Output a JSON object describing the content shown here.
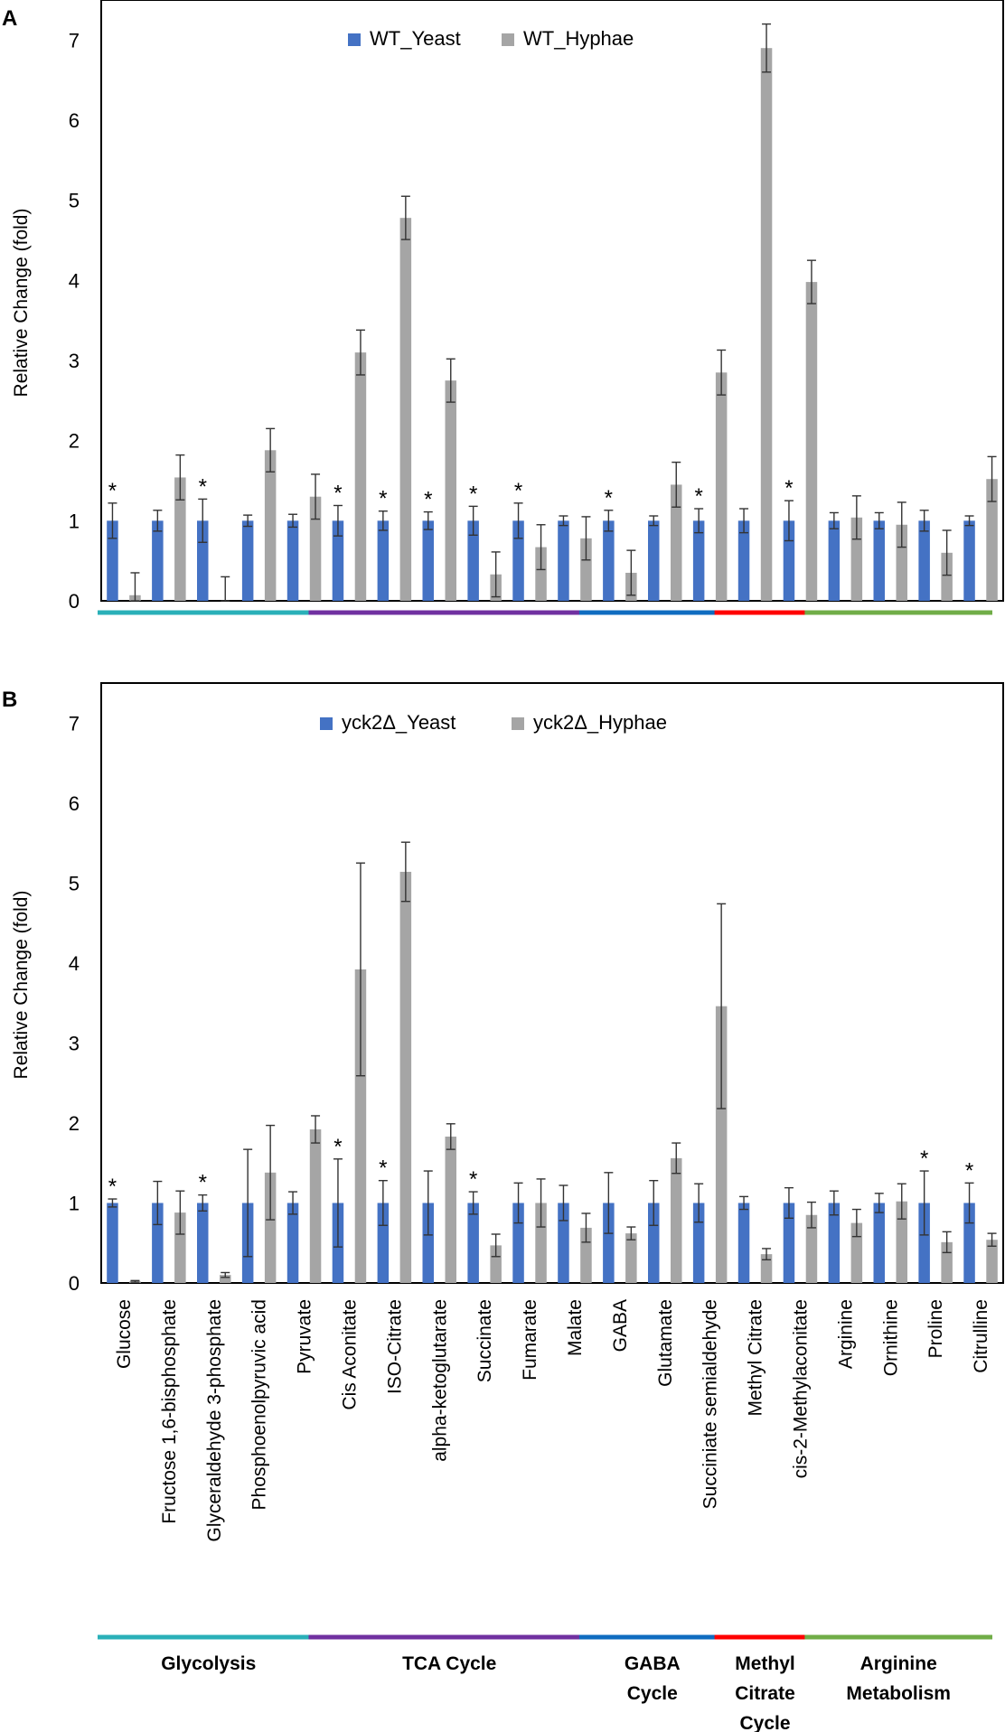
{
  "chart_data": [
    {
      "type": "bar",
      "panel_label": "A",
      "ylabel": "Relative Change (fold)",
      "ylim": [
        0,
        7.5
      ],
      "yticks": [
        0,
        1,
        2,
        3,
        4,
        5,
        6,
        7
      ],
      "legend_position": "top-center",
      "series": [
        {
          "name": "WT_Yeast",
          "color": "#4472C4",
          "values": [
            1,
            1,
            1,
            1,
            1,
            1,
            1,
            1,
            1,
            1,
            1,
            1,
            1,
            1,
            1,
            1,
            1,
            1,
            1,
            1
          ],
          "errors": [
            0.22,
            0.13,
            0.27,
            0.07,
            0.08,
            0.19,
            0.12,
            0.11,
            0.18,
            0.22,
            0.06,
            0.13,
            0.06,
            0.15,
            0.15,
            0.25,
            0.1,
            0.1,
            0.13,
            0.06
          ]
        },
        {
          "name": "WT_Hyphae",
          "color": "#A5A5A5",
          "values": [
            0.07,
            1.54,
            0.0,
            1.88,
            1.3,
            3.1,
            4.78,
            2.75,
            0.33,
            0.67,
            0.78,
            0.35,
            1.45,
            2.85,
            6.9,
            3.98,
            1.04,
            0.95,
            0.6,
            1.52
          ],
          "errors": [
            0.28,
            0.28,
            0.3,
            0.27,
            0.28,
            0.28,
            0.27,
            0.27,
            0.28,
            0.28,
            0.27,
            0.28,
            0.28,
            0.28,
            0.3,
            0.27,
            0.27,
            0.28,
            0.28,
            0.28
          ]
        }
      ],
      "significant": [
        "*",
        "",
        "*",
        "",
        "",
        "*",
        "*",
        "*",
        "*",
        "*",
        "",
        "*",
        "",
        "*",
        "",
        "*",
        "",
        "",
        "",
        ""
      ]
    },
    {
      "type": "bar",
      "panel_label": "B",
      "ylabel": "Relative Change (fold)",
      "ylim": [
        0,
        7.5
      ],
      "yticks": [
        0,
        1,
        2,
        3,
        4,
        5,
        6,
        7
      ],
      "legend_position": "top-center",
      "series": [
        {
          "name": "yck2Δ_Yeast",
          "color": "#4472C4",
          "values": [
            1,
            1,
            1,
            1,
            1,
            1,
            1,
            1,
            1,
            1,
            1,
            1,
            1,
            1,
            1,
            1,
            1,
            1,
            1,
            1
          ],
          "errors": [
            0.05,
            0.27,
            0.1,
            0.67,
            0.14,
            0.55,
            0.28,
            0.4,
            0.14,
            0.25,
            0.22,
            0.38,
            0.28,
            0.24,
            0.08,
            0.19,
            0.15,
            0.12,
            0.4,
            0.25
          ]
        },
        {
          "name": "yck2Δ_Hyphae",
          "color": "#A5A5A5",
          "values": [
            0.02,
            0.88,
            0.1,
            1.38,
            1.92,
            3.92,
            5.14,
            1.83,
            0.47,
            1.0,
            0.69,
            0.62,
            1.56,
            3.46,
            0.36,
            0.85,
            0.75,
            1.02,
            0.51,
            0.54
          ],
          "errors": [
            0.01,
            0.27,
            0.03,
            0.59,
            0.17,
            1.33,
            0.37,
            0.16,
            0.14,
            0.3,
            0.18,
            0.08,
            0.19,
            1.28,
            0.07,
            0.16,
            0.17,
            0.22,
            0.13,
            0.08
          ]
        }
      ],
      "significant": [
        "*",
        "",
        "*",
        "",
        "",
        "*",
        "*",
        "",
        "*",
        "",
        "",
        "",
        "",
        "",
        "",
        "",
        "",
        "",
        "*",
        "*"
      ]
    }
  ],
  "categories": [
    "Glucose",
    "Fructose 1,6-bisphosphate",
    "Glyceraldehyde 3-phosphate",
    "Phosphoenolpyruvic acid",
    "Pyruvate",
    "Cis Aconitate",
    "ISO-Citrate",
    "alpha-ketoglutarate",
    "Succinate",
    "Fumarate",
    "Malate",
    "GABA",
    "Glutamate",
    "Succiniate semialdehyde",
    "Methyl Citrate",
    "cis-2-Methylaconitate",
    "Arginine",
    "Ornithine",
    "Proline",
    "Citrulline"
  ],
  "groups": [
    {
      "name_lines": [
        "Glycolysis"
      ],
      "start": 0,
      "end": 4,
      "color": "#2AB0B8"
    },
    {
      "name_lines": [
        "TCA Cycle"
      ],
      "start": 5,
      "end": 10,
      "color": "#7030A0"
    },
    {
      "name_lines": [
        "GABA",
        "Cycle"
      ],
      "start": 11,
      "end": 13,
      "color": "#0F6CC0"
    },
    {
      "name_lines": [
        "Methyl",
        "Citrate",
        "Cycle"
      ],
      "start": 14,
      "end": 15,
      "color": "#FF0000"
    },
    {
      "name_lines": [
        "Arginine",
        "Metabolism"
      ],
      "start": 16,
      "end": 19,
      "color": "#70AD47"
    }
  ]
}
